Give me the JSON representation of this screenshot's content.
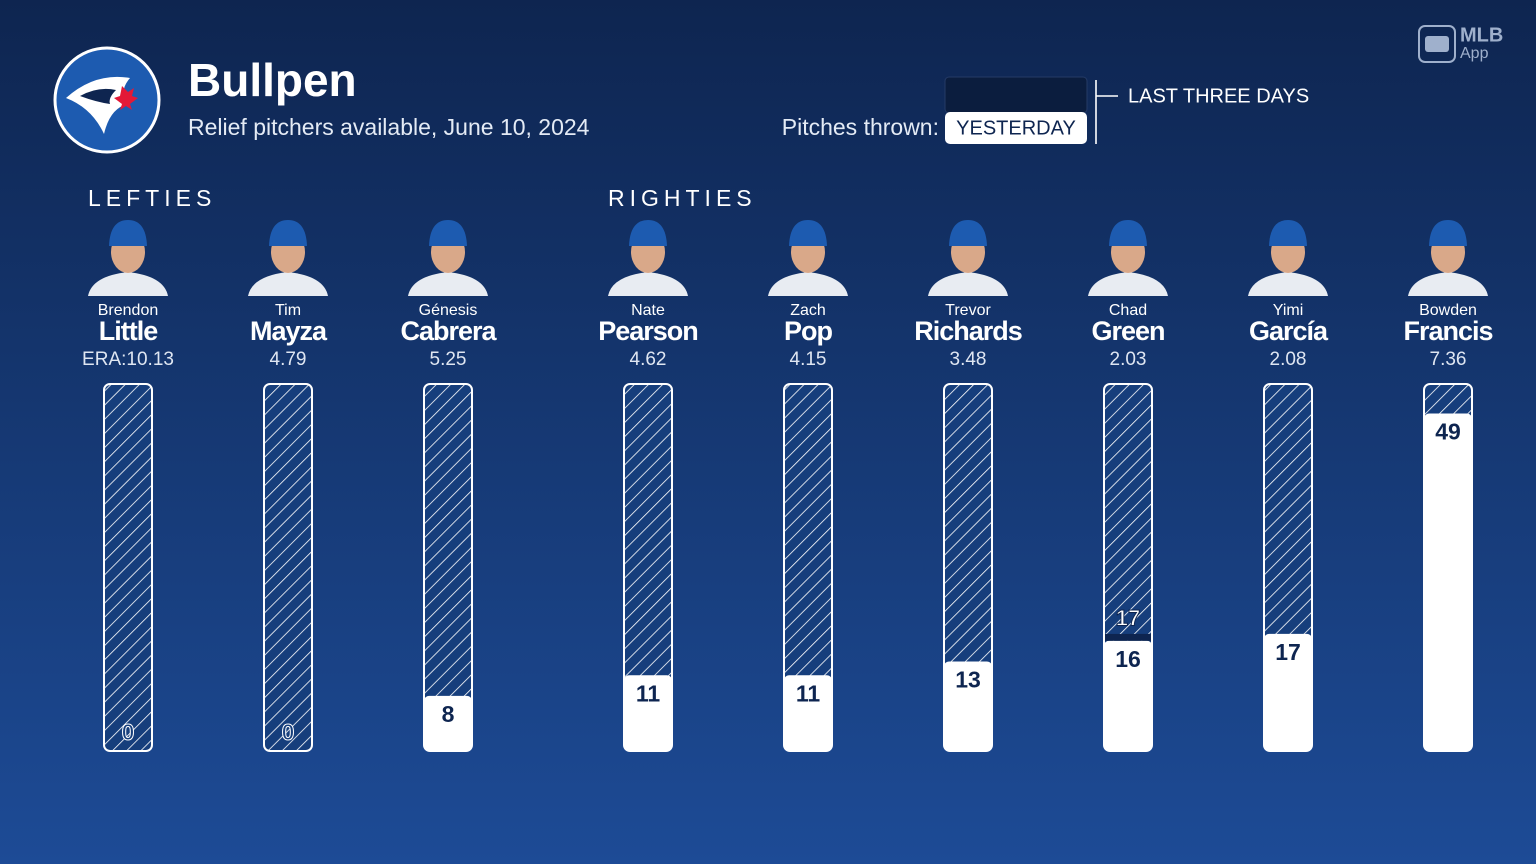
{
  "header": {
    "title": "Bullpen",
    "subtitle": "Relief pitchers available, June 10, 2024",
    "toggle_label": "Pitches thrown:",
    "toggle_selected": "YESTERDAY",
    "toggle_other": "LAST THREE DAYS",
    "brand": "MLB",
    "brand_sub": "App"
  },
  "era_prefix": "ERA:",
  "ylim": [
    0,
    53
  ],
  "groups": [
    {
      "label": "LEFTIES",
      "pitchers": [
        {
          "first": "Brendon",
          "last": "Little",
          "era": "10.13",
          "pitches": 0
        },
        {
          "first": "Tim",
          "last": "Mayza",
          "era": "4.79",
          "pitches": 0
        },
        {
          "first": "Génesis",
          "last": "Cabrera",
          "era": "5.25",
          "pitches": 8
        }
      ]
    },
    {
      "label": "RIGHTIES",
      "pitchers": [
        {
          "first": "Nate",
          "last": "Pearson",
          "era": "4.62",
          "pitches": 11
        },
        {
          "first": "Zach",
          "last": "Pop",
          "era": "4.15",
          "pitches": 11
        },
        {
          "first": "Trevor",
          "last": "Richards",
          "era": "3.48",
          "pitches": 13
        },
        {
          "first": "Chad",
          "last": "Green",
          "era": "2.03",
          "pitches": 16,
          "marker": 17
        },
        {
          "first": "Yimi",
          "last": "García",
          "era": "2.08",
          "pitches": 17
        },
        {
          "first": "Bowden",
          "last": "Francis",
          "era": "7.36",
          "pitches": 49
        }
      ]
    }
  ]
}
